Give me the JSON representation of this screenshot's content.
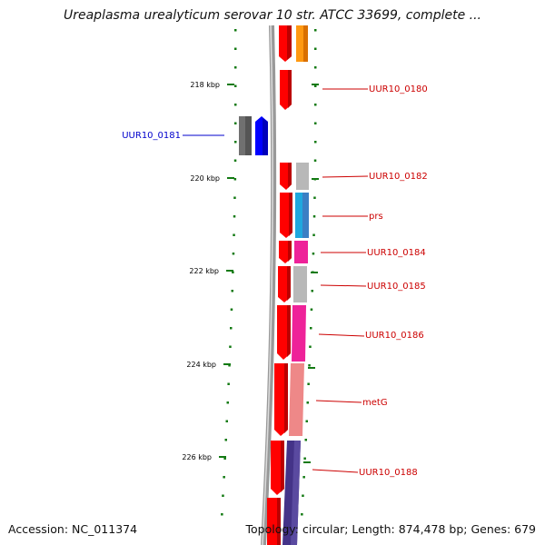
{
  "title": "Ureaplasma urealyticum serovar 10 str. ATCC 33699, complete ...",
  "footer": {
    "accession": "Accession: NC_011374",
    "summary": "Topology: circular; Length: 874,478 bp; Genes: 679"
  },
  "colors": {
    "backbone": "#8a8a8a",
    "tick": "#137a13",
    "forward_strand_label": "#0000cc",
    "reverse_strand_label": "#cc0000",
    "cds": "#ff0000"
  },
  "ticks": [
    {
      "kbp": 218,
      "label": "218 kbp"
    },
    {
      "kbp": 220,
      "label": "220 kbp"
    },
    {
      "kbp": 222,
      "label": "222 kbp"
    },
    {
      "kbp": 224,
      "label": "224 kbp"
    },
    {
      "kbp": 226,
      "label": "226 kbp"
    }
  ],
  "genes": [
    {
      "name": "UUR10_0181",
      "strand": "forward",
      "color": "#0000ff",
      "gene_color": "#666666"
    },
    {
      "name": "UUR10_0180",
      "strand": "reverse",
      "color": "#cc0000"
    },
    {
      "name": "UUR10_0182",
      "strand": "reverse",
      "color": "#cc0000",
      "gene_color": "#b0b0b0"
    },
    {
      "name": "prs",
      "strand": "reverse",
      "color": "#cc0000",
      "gene_color": "#22aadd"
    },
    {
      "name": "UUR10_0184",
      "strand": "reverse",
      "color": "#cc0000",
      "gene_color": "#ee2299"
    },
    {
      "name": "UUR10_0185",
      "strand": "reverse",
      "color": "#cc0000",
      "gene_color": "#b4b4b4"
    },
    {
      "name": "UUR10_0186",
      "strand": "reverse",
      "color": "#cc0000",
      "gene_color": "#ee2299"
    },
    {
      "name": "metG",
      "strand": "reverse",
      "color": "#cc0000",
      "gene_color": "#ee8888"
    },
    {
      "name": "UUR10_0188",
      "strand": "reverse",
      "color": "#cc0000",
      "gene_color": "#443388"
    }
  ],
  "top_gene_color": "#ff8800"
}
